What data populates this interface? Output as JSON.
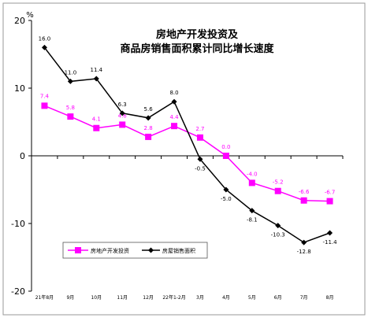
{
  "chart_data": {
    "type": "line",
    "title_line1": "房地产开发投资及",
    "title_line2": "商品房销售面积累计同比增长速度",
    "yunit": "%",
    "ylim": [
      -20,
      20
    ],
    "yticks": [
      "20",
      "10",
      "0",
      "-10",
      "-20"
    ],
    "categories": [
      "21年8月",
      "9月",
      "10月",
      "11月",
      "12月",
      "22年1-2月",
      "3月",
      "4月",
      "5月",
      "6月",
      "7月",
      "8月"
    ],
    "grid": false,
    "legend_position": "bottom-left",
    "series": [
      {
        "name": "房地产开发投资",
        "color": "#ff00ff",
        "marker": "square",
        "values": [
          7.4,
          5.8,
          4.1,
          4.6,
          2.8,
          4.4,
          2.7,
          0.0,
          -4.0,
          -5.2,
          -6.6,
          -6.7
        ],
        "labels": [
          "7.4",
          "5.8",
          "4.1",
          "4.6",
          "2.8",
          "4.4",
          "2.7",
          "0.0",
          "-4.0",
          "-5.2",
          "-6.6",
          "-6.7"
        ]
      },
      {
        "name": "房屋销售面积",
        "color": "#000000",
        "marker": "diamond",
        "values": [
          16.0,
          11.0,
          11.4,
          6.3,
          5.6,
          8.0,
          -0.5,
          -5.0,
          -8.1,
          -10.3,
          -12.8,
          -11.4
        ],
        "labels": [
          "16.0",
          "11.0",
          "11.4",
          "6.3",
          "5.6",
          "8.0",
          "-0.5",
          "-5.0",
          "-8.1",
          "-10.3",
          "-12.8",
          "-11.4"
        ]
      }
    ]
  }
}
